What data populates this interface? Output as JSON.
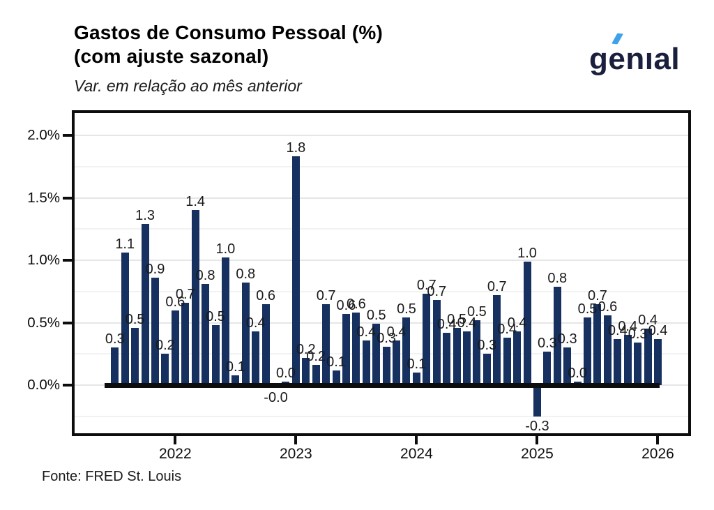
{
  "header": {
    "title_line1": "Gastos de Consumo Pessoal (%)",
    "title_line2": "(com ajuste sazonal)",
    "subtitle": "Var. em relação ao mês anterior",
    "logo_text": "genıal"
  },
  "footer": {
    "source": "Fonte: FRED St. Louis"
  },
  "colors": {
    "bar": "#16305f",
    "grid_major": "#e6e6e6",
    "grid_minor": "#f2f2f2",
    "axis": "#0d0d0d",
    "label": "#1a1a1a",
    "logo_navy": "#1b1f3e",
    "logo_accent": "#3ea2ea"
  },
  "chart_data": {
    "type": "bar",
    "title": "Gastos de Consumo Pessoal (%) (com ajuste sazonal)",
    "subtitle": "Var. em relação ao mês anterior",
    "source": "Fonte: FRED St. Louis",
    "start_month": "2021-07",
    "frequency": "monthly",
    "ylim": [
      -0.42,
      2.2
    ],
    "grid": "on",
    "y_ticks": [
      0.0,
      0.5,
      1.0,
      1.5,
      2.0
    ],
    "y_tick_labels": [
      "0.0%",
      "0.5%",
      "1.0%",
      "1.5%",
      "2.0%"
    ],
    "y_minor_ticks": [
      -0.25,
      0.25,
      0.75,
      1.25,
      1.75
    ],
    "x_tick_labels": [
      "2022",
      "2023",
      "2024",
      "2025",
      "2026"
    ],
    "x_tick_bar_index": [
      6,
      18,
      30,
      42,
      54
    ],
    "labels": [
      "0.3",
      "1.1",
      "0.5",
      "1.3",
      "0.9",
      "0.2",
      "0.6",
      "0.7",
      "1.4",
      "0.8",
      "0.5",
      "1.0",
      "0.1",
      "0.8",
      "0.4",
      "0.6",
      "-0.0",
      "0.0",
      "1.8",
      "0.2",
      "0.2",
      "0.7",
      "0.1",
      "0.6",
      "0.6",
      "0.4",
      "0.5",
      "0.3",
      "0.4",
      "0.5",
      "0.1",
      "0.7",
      "0.7",
      "0.4",
      "0.5",
      "0.4",
      "0.5",
      "0.3",
      "0.7",
      "0.4",
      "0.4",
      "1.0",
      "-0.3",
      "0.3",
      "0.8",
      "0.3",
      "0.0",
      "0.5",
      "0.7",
      "0.6",
      "0.4",
      "0.4",
      "0.3",
      "0.4",
      "0.4"
    ],
    "values": [
      0.3,
      1.06,
      0.46,
      1.29,
      0.86,
      0.25,
      0.6,
      0.66,
      1.4,
      0.81,
      0.48,
      1.02,
      0.08,
      0.82,
      0.43,
      0.65,
      -0.02,
      0.03,
      1.83,
      0.22,
      0.16,
      0.65,
      0.12,
      0.57,
      0.58,
      0.36,
      0.49,
      0.31,
      0.36,
      0.54,
      0.1,
      0.73,
      0.68,
      0.42,
      0.46,
      0.43,
      0.52,
      0.25,
      0.72,
      0.38,
      0.43,
      0.99,
      -0.25,
      0.27,
      0.79,
      0.3,
      0.03,
      0.54,
      0.65,
      0.56,
      0.37,
      0.4,
      0.34,
      0.45,
      0.37
    ]
  }
}
